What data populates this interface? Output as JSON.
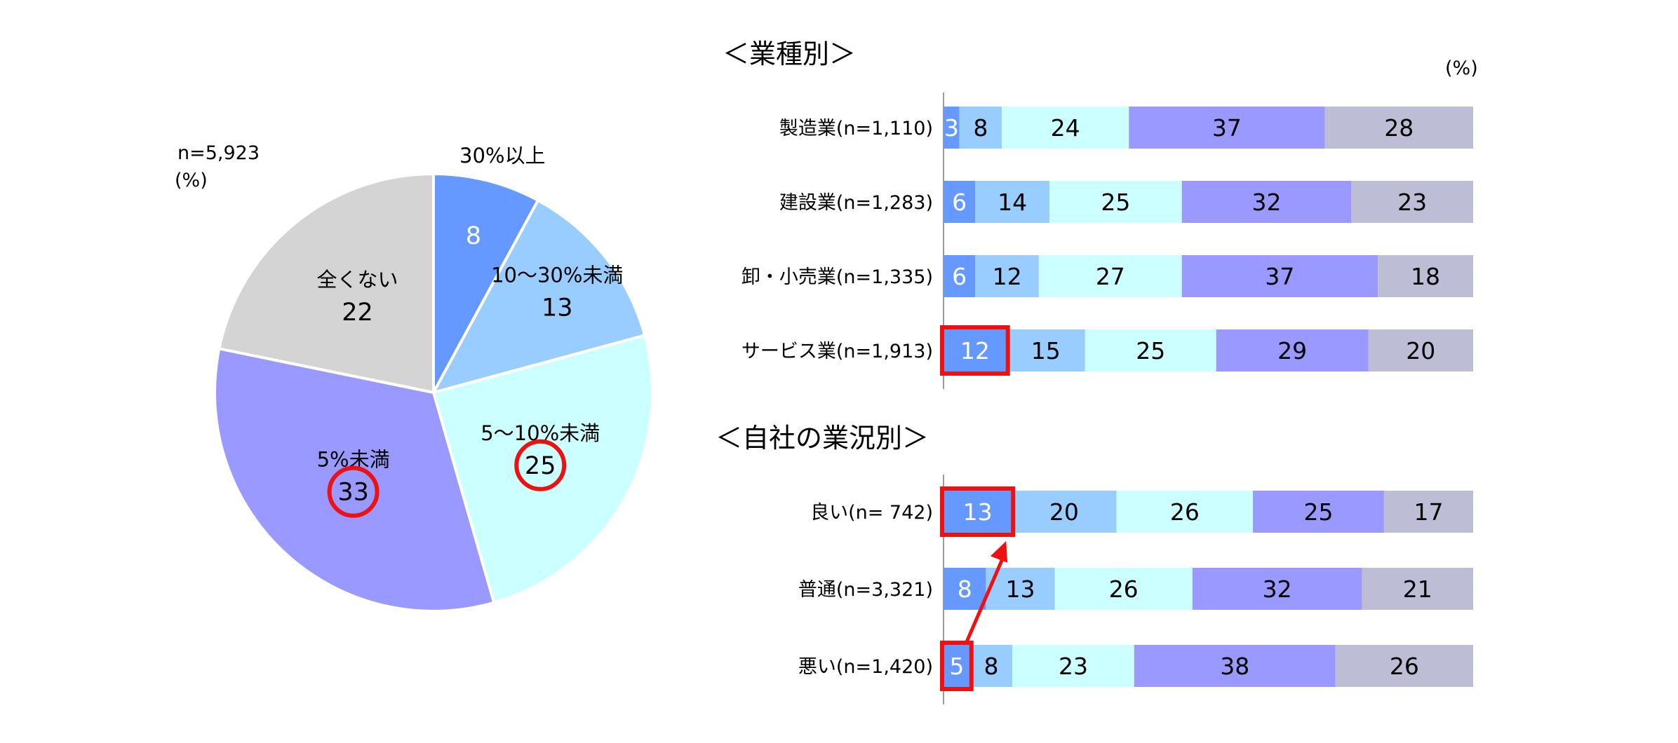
{
  "chart_data": [
    {
      "type": "pie",
      "n_label": "n=5,923",
      "unit_label": "(%)",
      "slices": [
        {
          "label": "30%以上",
          "value": 8,
          "color": "#6699FF",
          "label_color": "#ffffff"
        },
        {
          "label": "10～30%未満",
          "value": 13,
          "color": "#99CCFF",
          "label_color": "#000000"
        },
        {
          "label": "5～10%未満",
          "value": 25,
          "color": "#CCFFFF",
          "label_color": "#000000",
          "highlight": true
        },
        {
          "label": "5%未満",
          "value": 33,
          "color": "#9999FF",
          "label_color": "#000000",
          "highlight": true
        },
        {
          "label": "全くない",
          "value": 22,
          "color": "#D4D4D4",
          "label_color": "#000000"
        }
      ]
    },
    {
      "type": "bar",
      "orientation": "horizontal",
      "stacked": true,
      "title": "＜業種別＞",
      "unit_label": "(%)",
      "categories": [
        "製造業(n=1,110)",
        "建設業(n=1,283)",
        "卸・小売業(n=1,335)",
        "サービス業(n=1,913)"
      ],
      "series": [
        {
          "values": [
            3,
            6,
            6,
            12
          ],
          "color": "#6699FF",
          "label_color": "#ffffff"
        },
        {
          "values": [
            8,
            14,
            12,
            15
          ],
          "color": "#99CCFF",
          "label_color": "#000000"
        },
        {
          "values": [
            24,
            25,
            27,
            25
          ],
          "color": "#CCFFFF",
          "label_color": "#000000"
        },
        {
          "values": [
            37,
            32,
            37,
            29
          ],
          "color": "#9999FF",
          "label_color": "#000000"
        },
        {
          "values": [
            28,
            23,
            18,
            20
          ],
          "color": "#BDBDD5",
          "label_color": "#000000"
        }
      ],
      "highlights": [
        {
          "category": 3,
          "series": 0
        }
      ]
    },
    {
      "type": "bar",
      "orientation": "horizontal",
      "stacked": true,
      "title": "＜自社の業況別＞",
      "categories": [
        "良い(n=  742)",
        "普通(n=3,321)",
        "悪い(n=1,420)"
      ],
      "series": [
        {
          "values": [
            13,
            8,
            5
          ],
          "color": "#6699FF",
          "label_color": "#ffffff"
        },
        {
          "values": [
            20,
            13,
            8
          ],
          "color": "#99CCFF",
          "label_color": "#000000"
        },
        {
          "values": [
            26,
            26,
            23
          ],
          "color": "#CCFFFF",
          "label_color": "#000000"
        },
        {
          "values": [
            25,
            32,
            38
          ],
          "color": "#9999FF",
          "label_color": "#000000"
        },
        {
          "values": [
            17,
            21,
            26
          ],
          "color": "#BDBDD5",
          "label_color": "#000000"
        }
      ],
      "highlights": [
        {
          "category": 0,
          "series": 0
        },
        {
          "category": 2,
          "series": 0
        }
      ],
      "arrow": {
        "from_category": 2,
        "to_category": 0,
        "series": 0
      }
    }
  ],
  "highlight_color": "#EE1111"
}
